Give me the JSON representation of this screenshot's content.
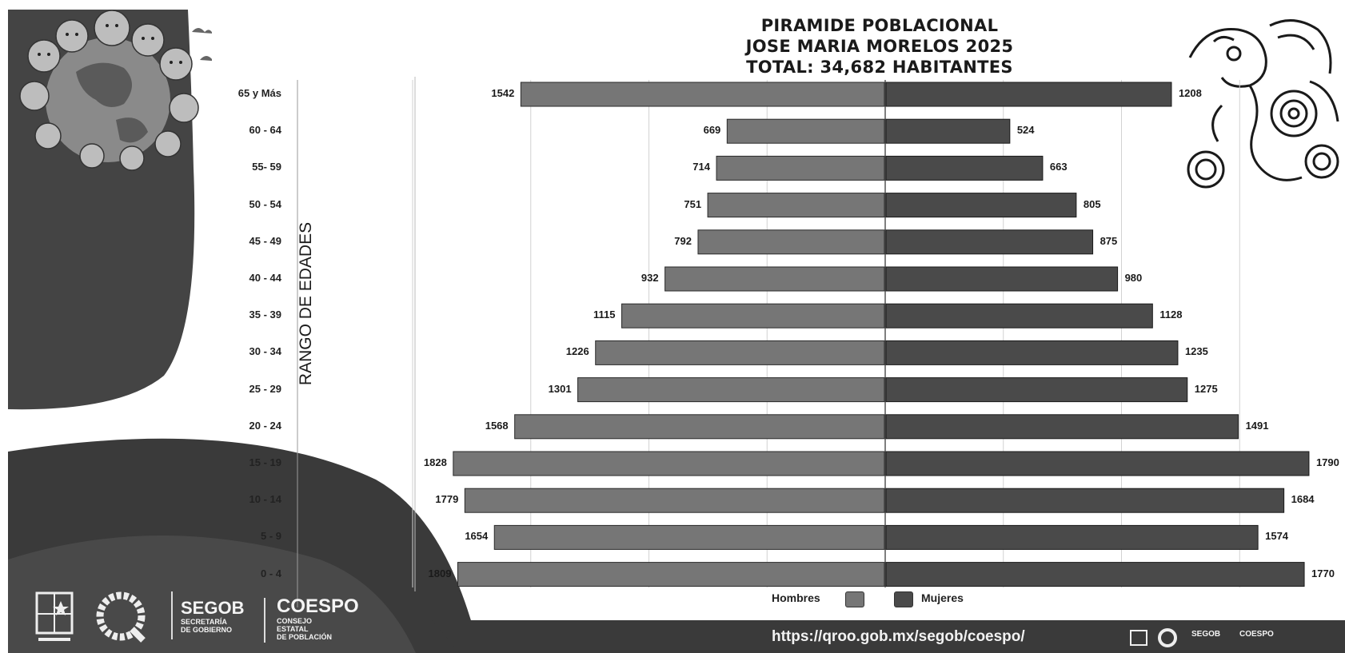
{
  "header": {
    "title_line1": "PIRAMIDE POBLACIONAL",
    "title_line2": "JOSE MARIA MORELOS 2025",
    "title_line3": "TOTAL: 34,682 HABITANTES"
  },
  "chart_data": {
    "type": "bar",
    "orientation": "horizontal",
    "title": "PIRAMIDE POBLACIONAL JOSE MARIA MORELOS 2025",
    "subtitle": "TOTAL: 34,682 HABITANTES",
    "ylabel": "RANGO DE EDADES",
    "categories": [
      "65 y Más",
      "60 - 64",
      "55- 59",
      "50 - 54",
      "45 - 49",
      "40 - 44",
      "35 - 39",
      "30 - 34",
      "25 - 29",
      "20 - 24",
      "15 - 19",
      "10 - 14",
      "5 - 9",
      "0 - 4"
    ],
    "series": [
      {
        "name": "Hombres",
        "values": [
          1542,
          669,
          714,
          751,
          792,
          932,
          1115,
          1226,
          1301,
          1568,
          1828,
          1779,
          1654,
          1809
        ]
      },
      {
        "name": "Mujeres",
        "values": [
          1208,
          524,
          663,
          805,
          875,
          980,
          1128,
          1235,
          1275,
          1491,
          1790,
          1684,
          1574,
          1770
        ]
      }
    ],
    "legend_position": "bottom",
    "grid": true
  },
  "colors": {
    "hombres": "#767676",
    "mujeres": "#4a4a4a",
    "dark_band": "#3a3a3a"
  },
  "footer": {
    "segob": "SEGOB",
    "segob_sub1": "SECRETARÍA",
    "segob_sub2": "DE GOBIERNO",
    "coespo": "COESPO",
    "coespo_sub1": "CONSEJO",
    "coespo_sub2": "ESTATAL",
    "coespo_sub3": "DE POBLACIÓN",
    "url": "https://qroo.gob.mx/segob/coespo/",
    "mini_segob": "SEGOB",
    "mini_coespo": "COESPO"
  },
  "icons": [
    "family-globe-illustration",
    "mayan-figure-illustration",
    "state-shield-icon",
    "quintana-roo-q-logo-icon"
  ]
}
